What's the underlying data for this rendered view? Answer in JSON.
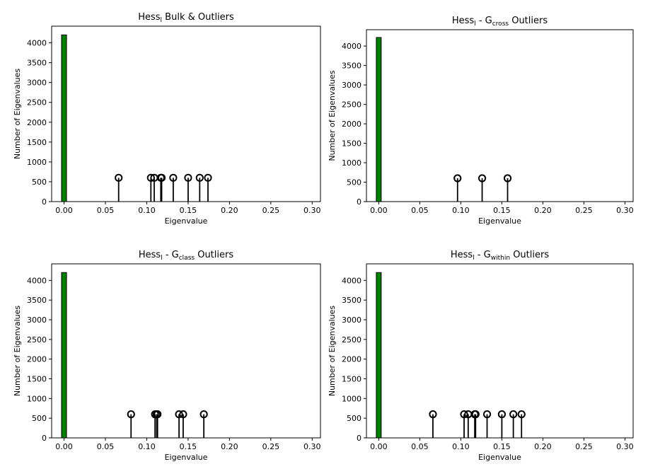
{
  "chart_data": [
    {
      "type": "bar",
      "title": {
        "main": "Hess",
        "sub": "l",
        "rest": " Bulk & Outliers",
        "sub2": "",
        "rest2": ""
      },
      "xlabel": "Eigenvalue",
      "ylabel": "Number of Eigenvalues",
      "xlim": [
        -0.015,
        0.31
      ],
      "ylim": [
        0,
        4420
      ],
      "xticks": [
        0.0,
        0.05,
        0.1,
        0.15,
        0.2,
        0.25,
        0.3
      ],
      "xtick_labels": [
        "0.00",
        "0.05",
        "0.10",
        "0.15",
        "0.20",
        "0.25",
        "0.30"
      ],
      "yticks": [
        0,
        500,
        1000,
        1500,
        2000,
        2500,
        3000,
        3500,
        4000
      ],
      "yticks_labels": [
        "0",
        "500",
        "1000",
        "1500",
        "2000",
        "2500",
        "3000",
        "3500",
        "4000"
      ],
      "bars": [
        {
          "x0": -0.003,
          "x1": 0.003,
          "value": 4200,
          "color": "#008000"
        }
      ],
      "outliers": {
        "marker_height": 600,
        "x": [
          0.066,
          0.105,
          0.109,
          0.117,
          0.118,
          0.132,
          0.15,
          0.164,
          0.174
        ]
      }
    },
    {
      "type": "bar",
      "title": {
        "main": "Hess",
        "sub": "l",
        "rest": " - G",
        "sub2": "cross",
        "rest2": " Outliers"
      },
      "xlabel": "Eigenvalue",
      "ylabel": "Number of Eigenvalues",
      "xlim": [
        -0.015,
        0.31
      ],
      "ylim": [
        0,
        4420
      ],
      "xticks": [
        0.0,
        0.05,
        0.1,
        0.15,
        0.2,
        0.25,
        0.3
      ],
      "xtick_labels": [
        "0.00",
        "0.05",
        "0.10",
        "0.15",
        "0.20",
        "0.25",
        "0.30"
      ],
      "yticks": [
        0,
        500,
        1000,
        1500,
        2000,
        2500,
        3000,
        3500,
        4000
      ],
      "yticks_labels": [
        "0",
        "500",
        "1000",
        "1500",
        "2000",
        "2500",
        "3000",
        "3500",
        "4000"
      ],
      "bars": [
        {
          "x0": -0.003,
          "x1": 0.003,
          "value": 4220,
          "color": "#008000"
        }
      ],
      "outliers": {
        "marker_height": 600,
        "x": [
          0.096,
          0.126,
          0.157
        ]
      }
    },
    {
      "type": "bar",
      "title": {
        "main": "Hess",
        "sub": "l",
        "rest": " - G",
        "sub2": "class",
        "rest2": " Outliers"
      },
      "xlabel": "Eigenvalue",
      "ylabel": "Number of Eigenvalues",
      "xlim": [
        -0.015,
        0.31
      ],
      "ylim": [
        0,
        4420
      ],
      "xticks": [
        0.0,
        0.05,
        0.1,
        0.15,
        0.2,
        0.25,
        0.3
      ],
      "xtick_labels": [
        "0.00",
        "0.05",
        "0.10",
        "0.15",
        "0.20",
        "0.25",
        "0.30"
      ],
      "yticks": [
        0,
        500,
        1000,
        1500,
        2000,
        2500,
        3000,
        3500,
        4000
      ],
      "yticks_labels": [
        "0",
        "500",
        "1000",
        "1500",
        "2000",
        "2500",
        "3000",
        "3500",
        "4000"
      ],
      "bars": [
        {
          "x0": -0.003,
          "x1": 0.003,
          "value": 4200,
          "color": "#008000"
        }
      ],
      "outliers": {
        "marker_height": 600,
        "x": [
          0.081,
          0.11,
          0.112,
          0.113,
          0.139,
          0.144,
          0.169
        ]
      }
    },
    {
      "type": "bar",
      "title": {
        "main": "Hess",
        "sub": "l",
        "rest": " - G",
        "sub2": "within",
        "rest2": " Outliers"
      },
      "xlabel": "Eigenvalue",
      "ylabel": "Number of Eigenvalues",
      "xlim": [
        -0.015,
        0.31
      ],
      "ylim": [
        0,
        4420
      ],
      "xticks": [
        0.0,
        0.05,
        0.1,
        0.15,
        0.2,
        0.25,
        0.3
      ],
      "xtick_labels": [
        "0.00",
        "0.05",
        "0.10",
        "0.15",
        "0.20",
        "0.25",
        "0.30"
      ],
      "yticks": [
        0,
        500,
        1000,
        1500,
        2000,
        2500,
        3000,
        3500,
        4000
      ],
      "yticks_labels": [
        "0",
        "500",
        "1000",
        "1500",
        "2000",
        "2500",
        "3000",
        "3500",
        "4000"
      ],
      "bars": [
        {
          "x0": -0.003,
          "x1": 0.003,
          "value": 4200,
          "color": "#008000"
        }
      ],
      "outliers": {
        "marker_height": 600,
        "x": [
          0.066,
          0.104,
          0.109,
          0.117,
          0.118,
          0.132,
          0.15,
          0.164,
          0.174
        ]
      }
    }
  ]
}
